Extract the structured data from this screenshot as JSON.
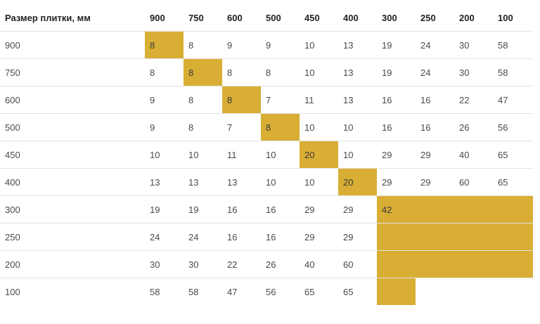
{
  "table": {
    "corner_label": "Размер плитки, мм",
    "highlight_color": "#d8ae35",
    "columns": [
      "900",
      "750",
      "600",
      "500",
      "450",
      "400",
      "300",
      "250",
      "200",
      "100"
    ],
    "rows": [
      {
        "label": "900",
        "cells": [
          "8",
          "8",
          "9",
          "9",
          "10",
          "13",
          "19",
          "24",
          "30",
          "58"
        ],
        "highlight": [
          0
        ]
      },
      {
        "label": "750",
        "cells": [
          "8",
          "8",
          "8",
          "8",
          "10",
          "13",
          "19",
          "24",
          "30",
          "58"
        ],
        "highlight": [
          1
        ]
      },
      {
        "label": "600",
        "cells": [
          "9",
          "8",
          "8",
          "7",
          "11",
          "13",
          "16",
          "16",
          "22",
          "47"
        ],
        "highlight": [
          2
        ]
      },
      {
        "label": "500",
        "cells": [
          "9",
          "8",
          "7",
          "8",
          "10",
          "10",
          "16",
          "16",
          "26",
          "56"
        ],
        "highlight": [
          3
        ]
      },
      {
        "label": "450",
        "cells": [
          "10",
          "10",
          "11",
          "10",
          "20",
          "10",
          "29",
          "29",
          "40",
          "65"
        ],
        "highlight": [
          4
        ]
      },
      {
        "label": "400",
        "cells": [
          "13",
          "13",
          "13",
          "10",
          "10",
          "20",
          "29",
          "29",
          "60",
          "65"
        ],
        "highlight": [
          5
        ]
      },
      {
        "label": "300",
        "cells": [
          "19",
          "19",
          "16",
          "16",
          "29",
          "29",
          "42",
          "",
          "",
          ""
        ],
        "highlight": [
          6,
          7,
          8,
          9
        ]
      },
      {
        "label": "250",
        "cells": [
          "24",
          "24",
          "16",
          "16",
          "29",
          "29",
          "",
          "",
          "",
          ""
        ],
        "highlight": [
          6,
          7,
          8,
          9
        ]
      },
      {
        "label": "200",
        "cells": [
          "30",
          "30",
          "22",
          "26",
          "40",
          "60",
          "",
          "",
          "",
          ""
        ],
        "highlight": [
          6,
          7,
          8,
          9
        ]
      },
      {
        "label": "100",
        "cells": [
          "58",
          "58",
          "47",
          "56",
          "65",
          "65",
          "",
          "",
          "",
          ""
        ],
        "highlight": [
          6
        ]
      }
    ]
  }
}
